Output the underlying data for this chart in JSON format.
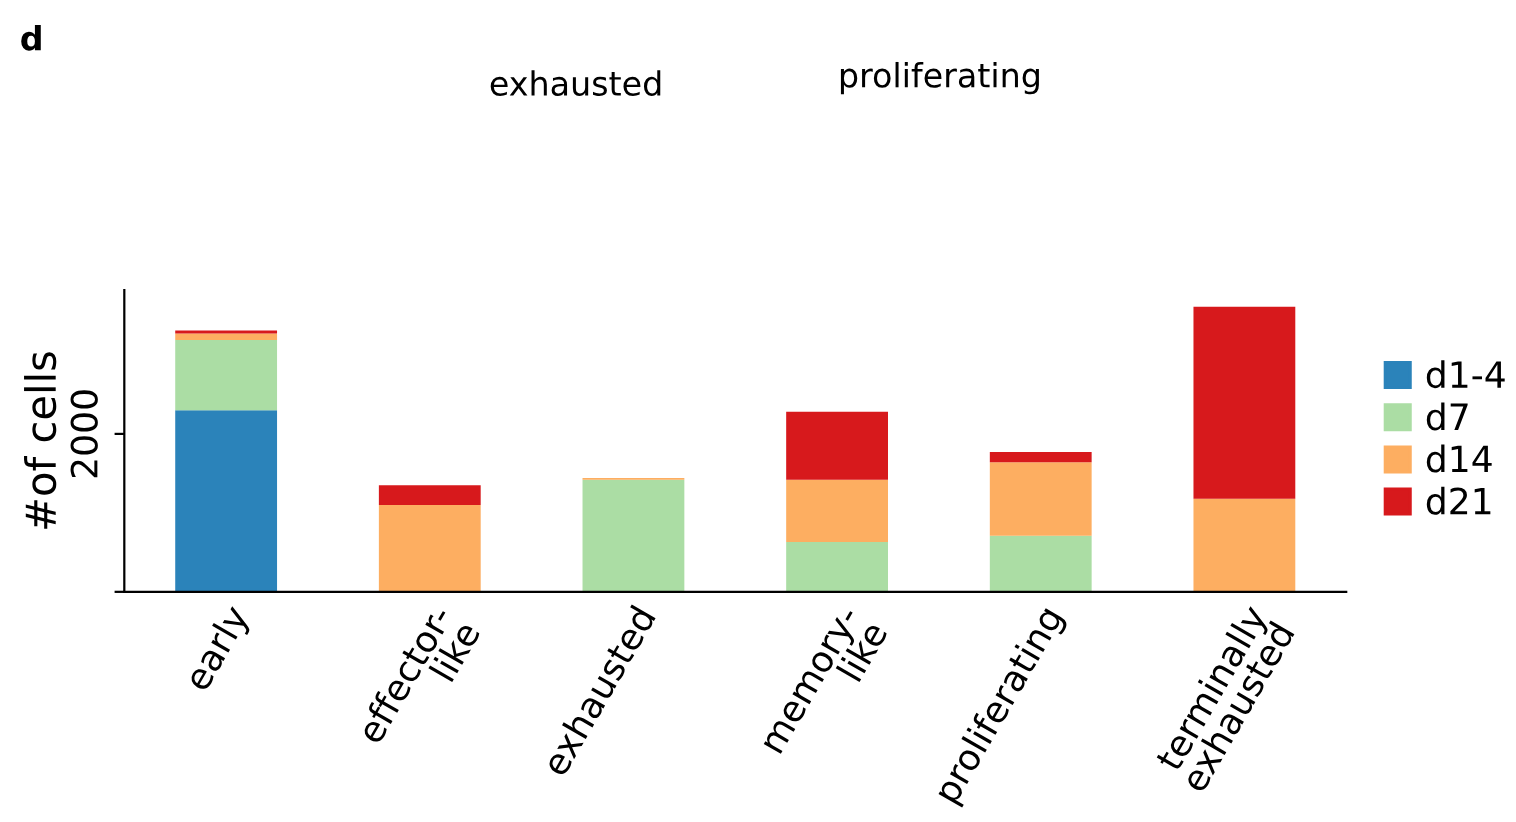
{
  "chart_data": {
    "type": "bar",
    "stacked": true,
    "ylabel": "#of cells",
    "categories": [
      "early",
      "effector-\nlike",
      "exhausted",
      "memory-\nlike",
      "proliferating",
      "terminally\nexhausted"
    ],
    "series": [
      {
        "name": "d1-4",
        "color": "#2b83ba",
        "values": [
          2300,
          0,
          0,
          0,
          0,
          0
        ]
      },
      {
        "name": "d7",
        "color": "#abdda4",
        "values": [
          890,
          0,
          1420,
          630,
          710,
          0
        ]
      },
      {
        "name": "d14",
        "color": "#fdae61",
        "values": [
          80,
          1100,
          20,
          790,
          930,
          1180
        ]
      },
      {
        "name": "d21",
        "color": "#d7191c",
        "values": [
          40,
          250,
          0,
          860,
          130,
          2430
        ]
      }
    ],
    "ylim": [
      0,
      3820
    ],
    "yticks": [
      {
        "value": 0,
        "label": null
      },
      2000
    ],
    "legend": "right",
    "grid": false,
    "annotations": [
      "d",
      "exhausted",
      "proliferating"
    ]
  }
}
